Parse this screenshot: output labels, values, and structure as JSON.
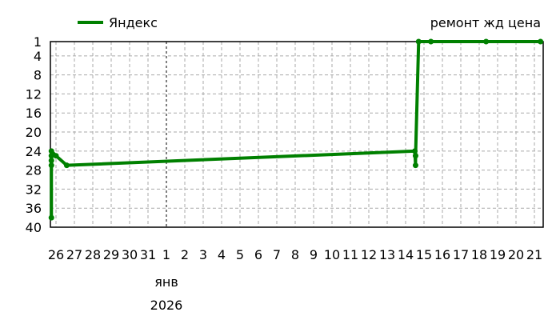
{
  "chart_data": {
    "type": "line",
    "title": "ремонт жд цена",
    "legend": {
      "position": "top-left",
      "entries": [
        "Яндекс"
      ]
    },
    "y_inverted": true,
    "ylim": [
      1,
      40
    ],
    "y_ticks": [
      "1",
      "4",
      "8",
      "12",
      "16",
      "20",
      "24",
      "28",
      "32",
      "36",
      "40"
    ],
    "x_range": [
      "2025-12-26",
      "2026-01-21"
    ],
    "x_tick_labels": [
      "26",
      "27",
      "28",
      "29",
      "30",
      "31",
      "1",
      "2",
      "3",
      "4",
      "5",
      "6",
      "7",
      "8",
      "9",
      "10",
      "11",
      "12",
      "13",
      "14",
      "15",
      "16",
      "17",
      "18",
      "19",
      "20",
      "21"
    ],
    "month_label": "янв",
    "year_label": "2026",
    "grid": true,
    "series": [
      {
        "name": "Яндекс",
        "color": "#008000",
        "points": [
          {
            "x": "2025-12-25T18:00",
            "y": 38
          },
          {
            "x": "2025-12-25T18:00",
            "y": 27
          },
          {
            "x": "2025-12-25T18:00",
            "y": 26
          },
          {
            "x": "2025-12-25T18:00",
            "y": 25
          },
          {
            "x": "2025-12-25T18:00",
            "y": 24
          },
          {
            "x": "2025-12-26T00:00",
            "y": 25
          },
          {
            "x": "2025-12-26T14:00",
            "y": 27
          },
          {
            "x": "2026-01-14T12:00",
            "y": 24
          },
          {
            "x": "2026-01-14T13:00",
            "y": 27
          },
          {
            "x": "2026-01-14T13:00",
            "y": 25
          },
          {
            "x": "2026-01-14T17:00",
            "y": 1
          },
          {
            "x": "2026-01-15T09:00",
            "y": 1
          },
          {
            "x": "2026-01-18T09:00",
            "y": 1
          },
          {
            "x": "2026-01-21T08:00",
            "y": 1
          }
        ]
      }
    ]
  }
}
